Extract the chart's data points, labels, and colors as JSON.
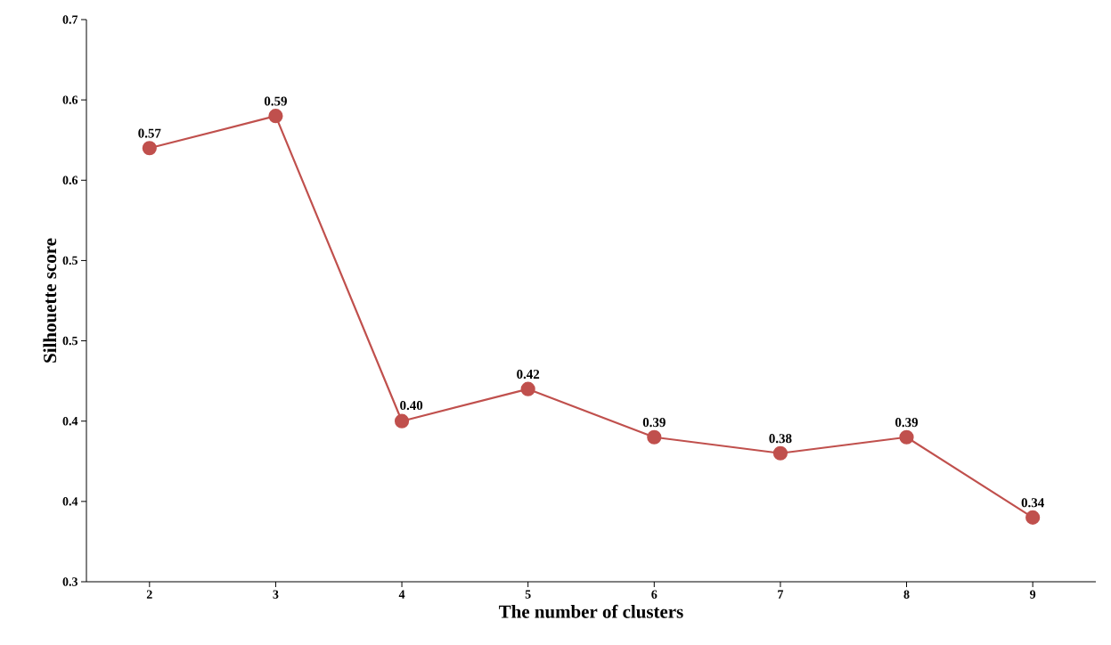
{
  "chart_data": {
    "type": "line",
    "xlabel": "The number of clusters",
    "ylabel": "Silhouette score",
    "categories": [
      "2",
      "3",
      "4",
      "5",
      "6",
      "7",
      "8",
      "9"
    ],
    "series": [
      {
        "color": "#c0504d",
        "values": [
          0.57,
          0.59,
          0.4,
          0.42,
          0.39,
          0.38,
          0.39,
          0.34
        ]
      }
    ],
    "ylim": [
      0.3,
      0.65
    ],
    "yticks": [
      {
        "value": 0.3,
        "label": "0.3"
      },
      {
        "value": 0.35,
        "label": "0.4"
      },
      {
        "value": 0.4,
        "label": "0.4"
      },
      {
        "value": 0.45,
        "label": "0.5"
      },
      {
        "value": 0.5,
        "label": "0.5"
      },
      {
        "value": 0.55,
        "label": "0.6"
      },
      {
        "value": 0.6,
        "label": "0.6"
      },
      {
        "value": 0.65,
        "label": "0.7"
      }
    ],
    "value_labels": [
      "0.57",
      "0.59",
      "0.40",
      "0.42",
      "0.39",
      "0.38",
      "0.39",
      "0.34"
    ],
    "grid": false,
    "marker": "circle",
    "line_style": "solid"
  }
}
